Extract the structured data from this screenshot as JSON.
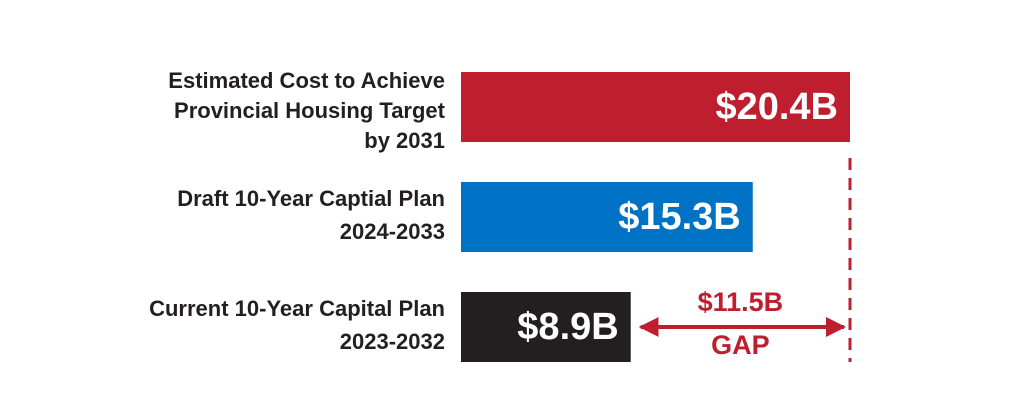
{
  "chart_data": {
    "type": "bar",
    "orientation": "horizontal",
    "categories": [
      [
        "Estimated Cost to Achieve",
        "Provincial Housing Target",
        "by 2031"
      ],
      [
        "Draft 10-Year Captial Plan",
        "2024-2033"
      ],
      [
        "Current 10-Year Capital Plan",
        "2023-2032"
      ]
    ],
    "values": [
      20.4,
      15.3,
      8.9
    ],
    "value_labels": [
      "$20.4B",
      "$15.3B",
      "$8.9B"
    ],
    "colors": [
      "#be1e2d",
      "#0072c6",
      "#231f20"
    ],
    "xlim": [
      0,
      20.4
    ],
    "gap": {
      "value": 11.5,
      "label": "$11.5B",
      "text": "GAP",
      "color": "#be1e2d"
    }
  }
}
